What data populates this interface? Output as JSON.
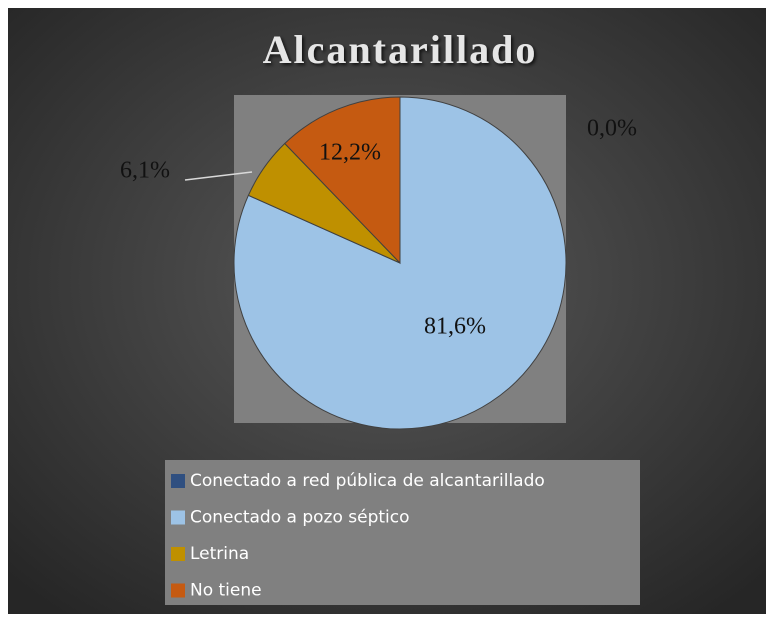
{
  "chart_data": {
    "type": "pie",
    "title": "Alcantarillado",
    "categories": [
      "Conectado a red pública de alcantarillado",
      "Conectado a pozo séptico",
      "Letrina",
      "No tiene"
    ],
    "values": [
      0.0,
      81.6,
      6.1,
      12.2
    ],
    "value_labels": [
      "0,0%",
      "81,6%",
      "6,1%",
      "12,2%"
    ],
    "colors": [
      "#2f4f80",
      "#9dc3e6",
      "#bf9000",
      "#c55a11"
    ],
    "legend": "bottom"
  }
}
